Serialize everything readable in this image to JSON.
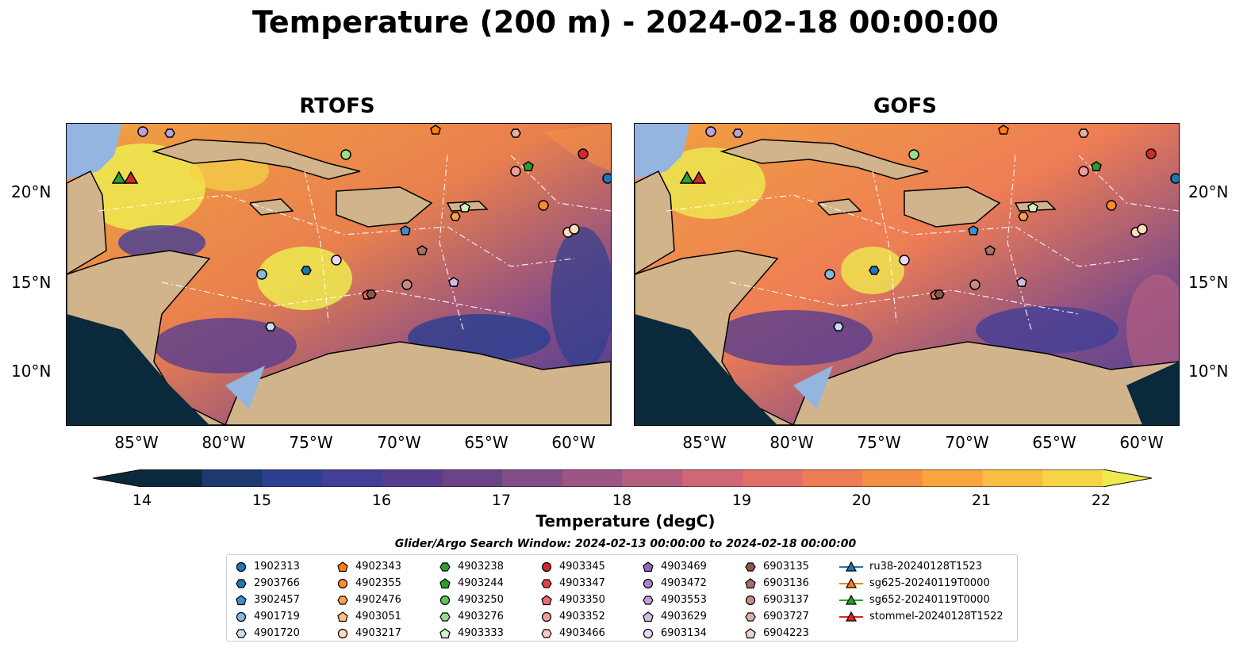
{
  "title": "Temperature (200 m) - 2024-02-18 00:00:00",
  "panels": [
    {
      "title": "RTOFS"
    },
    {
      "title": "GOFS"
    }
  ],
  "x_ticks": [
    "85°W",
    "80°W",
    "75°W",
    "70°W",
    "65°W",
    "60°W"
  ],
  "y_ticks": [
    "20°N",
    "15°N",
    "10°N"
  ],
  "colorbar": {
    "label": "Temperature (degC)",
    "ticks": [
      "14",
      "15",
      "16",
      "17",
      "18",
      "19",
      "20",
      "21",
      "22"
    ],
    "range": [
      14,
      22
    ],
    "colors": [
      "#0a2a3c",
      "#1d3a6e",
      "#2f3f8f",
      "#433f96",
      "#573d8e",
      "#6b4488",
      "#834d87",
      "#9c5585",
      "#b65e7f",
      "#cf6775",
      "#e26f65",
      "#ee7d55",
      "#f58f44",
      "#f8a53f",
      "#f9bd41",
      "#f5d447",
      "#edeb50"
    ]
  },
  "search_window": "Glider/Argo Search Window: 2024-02-13 00:00:00 to 2024-02-18 00:00:00",
  "legend": {
    "columns": [
      [
        {
          "label": "1902313",
          "marker": "circle",
          "color": "#1f77b4"
        },
        {
          "label": "2903766",
          "marker": "hexagon",
          "color": "#1f77b4"
        },
        {
          "label": "3902457",
          "marker": "pentagon",
          "color": "#3f8fcf"
        },
        {
          "label": "4901719",
          "marker": "circle",
          "color": "#84b9e0"
        },
        {
          "label": "4901720",
          "marker": "hexagon",
          "color": "#c7def0"
        }
      ],
      [
        {
          "label": "4902343",
          "marker": "pentagon",
          "color": "#ff7f0e"
        },
        {
          "label": "4902355",
          "marker": "circle",
          "color": "#ff8c2a"
        },
        {
          "label": "4902476",
          "marker": "hexagon",
          "color": "#ffa04d"
        },
        {
          "label": "4903051",
          "marker": "pentagon",
          "color": "#ffc285"
        },
        {
          "label": "4903217",
          "marker": "circle",
          "color": "#ffdcbc"
        }
      ],
      [
        {
          "label": "4903238",
          "marker": "hexagon",
          "color": "#2ca02c"
        },
        {
          "label": "4903244",
          "marker": "pentagon",
          "color": "#2ca02c"
        },
        {
          "label": "4903250",
          "marker": "circle",
          "color": "#5cc45c"
        },
        {
          "label": "4903276",
          "marker": "hexagon",
          "color": "#98df8a"
        },
        {
          "label": "4903333",
          "marker": "pentagon",
          "color": "#cdf2c4"
        }
      ],
      [
        {
          "label": "4903345",
          "marker": "circle",
          "color": "#d62728"
        },
        {
          "label": "4903347",
          "marker": "hexagon",
          "color": "#e04445"
        },
        {
          "label": "4903350",
          "marker": "pentagon",
          "color": "#ea6a6b"
        },
        {
          "label": "4903352",
          "marker": "circle",
          "color": "#f59a9a"
        },
        {
          "label": "4903466",
          "marker": "hexagon",
          "color": "#fbc9c8"
        }
      ],
      [
        {
          "label": "4903469",
          "marker": "pentagon",
          "color": "#9467bd"
        },
        {
          "label": "4903472",
          "marker": "circle",
          "color": "#a983cc"
        },
        {
          "label": "4903553",
          "marker": "hexagon",
          "color": "#bd9fdc"
        },
        {
          "label": "4903629",
          "marker": "pentagon",
          "color": "#d3bcea"
        },
        {
          "label": "6903134",
          "marker": "circle",
          "color": "#e9d9f6"
        }
      ],
      [
        {
          "label": "6903135",
          "marker": "hexagon",
          "color": "#8c564b"
        },
        {
          "label": "6903136",
          "marker": "pentagon",
          "color": "#a8706a"
        },
        {
          "label": "6903137",
          "marker": "circle",
          "color": "#c48c84"
        },
        {
          "label": "6903727",
          "marker": "hexagon",
          "color": "#dbb0a8"
        },
        {
          "label": "6904223",
          "marker": "pentagon",
          "color": "#f0d2ca"
        }
      ],
      [
        {
          "label": "ru38-20240128T1523",
          "marker": "triangle-line",
          "color": "#1f77b4"
        },
        {
          "label": "sg625-20240119T0000",
          "marker": "triangle-line",
          "color": "#ff7f0e"
        },
        {
          "label": "sg652-20240119T0000",
          "marker": "triangle-line",
          "color": "#2ca02c"
        },
        {
          "label": "stommel-20240128T1522",
          "marker": "triangle-line",
          "color": "#d62728"
        }
      ]
    ]
  },
  "colors": {
    "land": "#d2b48c",
    "shallow_water": "#93b5e0",
    "deep_ocean": "#06222f"
  }
}
